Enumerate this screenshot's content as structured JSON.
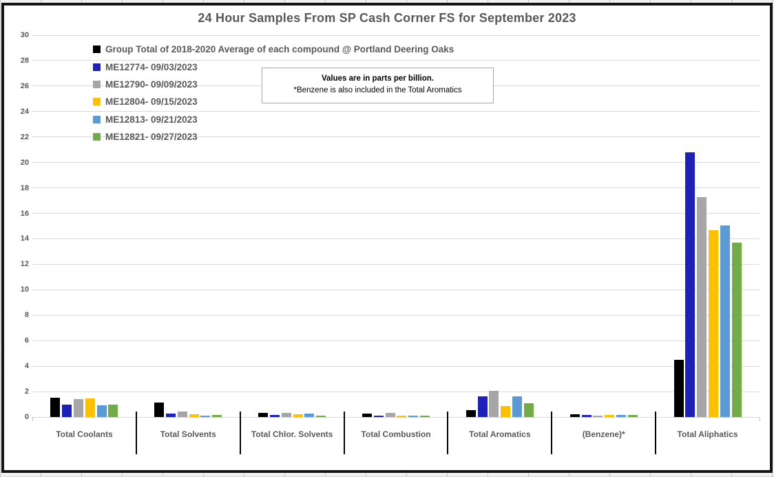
{
  "chart_data": {
    "type": "bar",
    "title": "24 Hour Samples From SP Cash Corner FS for September 2023",
    "note": {
      "line1": "Values are in parts per billion.",
      "line2": "*Benzene is also included in the Total Aromatics"
    },
    "unit": "parts per billion",
    "categories": [
      "Total Coolants",
      "Total Solvents",
      "Total Chlor. Solvents",
      "Total Combustion",
      "Total Aromatics",
      "(Benzene)*",
      "Total Aliphatics"
    ],
    "series": [
      {
        "name": "Group Total of 2018-2020 Average of each compound @ Portland Deering Oaks",
        "color": "#000000",
        "values": [
          1.5,
          1.15,
          0.3,
          0.25,
          0.55,
          0.2,
          4.5
        ]
      },
      {
        "name": "ME12774- 09/03/2023",
        "color": "#1E21B8",
        "values": [
          0.95,
          0.25,
          0.15,
          0.1,
          1.6,
          0.15,
          20.8
        ]
      },
      {
        "name": "ME12790- 09/09/2023",
        "color": "#A6A6A6",
        "values": [
          1.4,
          0.45,
          0.3,
          0.3,
          2.05,
          0.1,
          17.25
        ]
      },
      {
        "name": "ME12804- 09/15/2023",
        "color": "#FFC000",
        "values": [
          1.45,
          0.2,
          0.2,
          0.1,
          0.85,
          0.15,
          14.7
        ]
      },
      {
        "name": "ME12813- 09/21/2023",
        "color": "#5B9BD5",
        "values": [
          0.9,
          0.1,
          0.25,
          0.1,
          1.6,
          0.15,
          15.05
        ]
      },
      {
        "name": "ME12821- 09/27/2023",
        "color": "#70AD47",
        "values": [
          0.95,
          0.15,
          0.1,
          0.1,
          1.1,
          0.15,
          13.7
        ]
      }
    ],
    "ylim": [
      0,
      30
    ],
    "ytick_step": 2,
    "yticks": [
      0,
      2,
      4,
      6,
      8,
      10,
      12,
      14,
      16,
      18,
      20,
      22,
      24,
      26,
      28,
      30
    ],
    "grid": true,
    "legend_position": "top-left-vertical",
    "gridline_color": "#d9d9d9",
    "text_color": "#595959"
  }
}
